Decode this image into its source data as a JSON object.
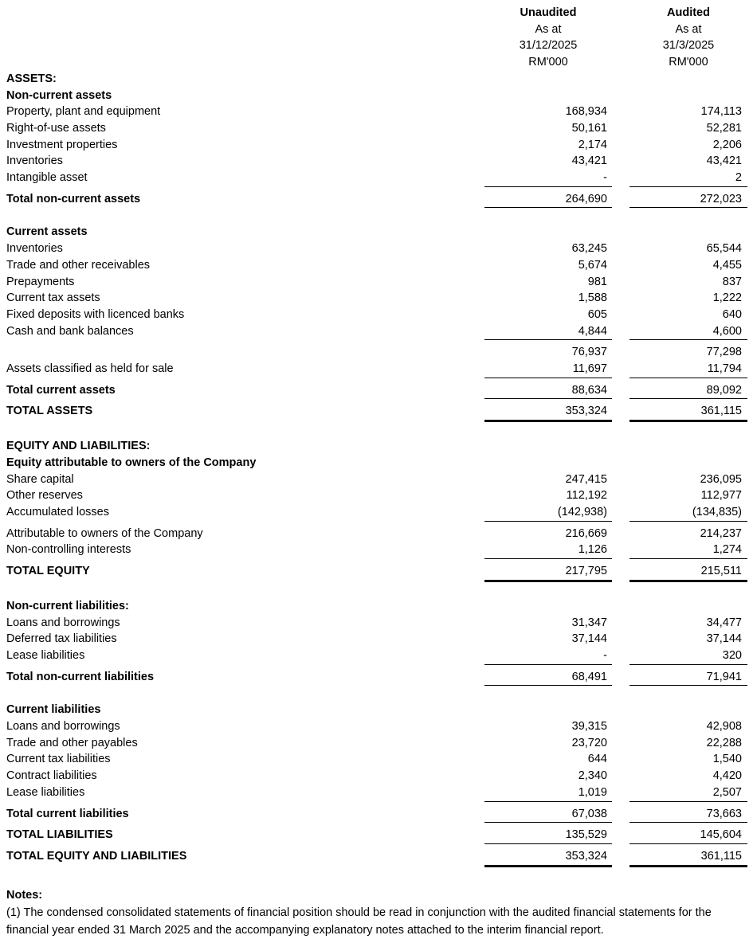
{
  "columns": [
    {
      "status": "Unaudited",
      "as_at": "As at",
      "date": "31/12/2025",
      "unit": "RM'000"
    },
    {
      "status": "Audited",
      "as_at": "As at",
      "date": "31/3/2025",
      "unit": "RM'000"
    }
  ],
  "rows": [
    {
      "type": "section",
      "label": "ASSETS:"
    },
    {
      "type": "section",
      "label": "Non-current assets"
    },
    {
      "type": "item",
      "label": "Property, plant and equipment",
      "v1": "168,934",
      "v2": "174,113"
    },
    {
      "type": "item",
      "label": "Right-of-use assets",
      "v1": "50,161",
      "v2": "52,281"
    },
    {
      "type": "item",
      "label": "Investment properties",
      "v1": "2,174",
      "v2": "2,206"
    },
    {
      "type": "item",
      "label": "Inventories",
      "v1": "43,421",
      "v2": "43,421"
    },
    {
      "type": "item",
      "label": "Intangible asset",
      "v1": "-",
      "v2": "2",
      "u": true
    },
    {
      "type": "total",
      "label": "Total non-current assets",
      "v1": "264,690",
      "v2": "272,023"
    },
    {
      "type": "section",
      "label": "Current assets",
      "gap": true
    },
    {
      "type": "item",
      "label": "Inventories",
      "v1": "63,245",
      "v2": "65,544"
    },
    {
      "type": "item",
      "label": "Trade and other receivables",
      "v1": "5,674",
      "v2": "4,455"
    },
    {
      "type": "item",
      "label": "Prepayments",
      "v1": "981",
      "v2": "837"
    },
    {
      "type": "item",
      "label": "Current tax assets",
      "v1": "1,588",
      "v2": "1,222"
    },
    {
      "type": "item",
      "label": "Fixed deposits with licenced banks",
      "v1": "605",
      "v2": "640"
    },
    {
      "type": "item",
      "label": "Cash and bank balances",
      "v1": "4,844",
      "v2": "4,600",
      "u": true
    },
    {
      "type": "item",
      "label": "",
      "v1": "76,937",
      "v2": "77,298",
      "gap_small": true
    },
    {
      "type": "item",
      "label": "Assets classified as held for sale",
      "v1": "11,697",
      "v2": "11,794",
      "u": true
    },
    {
      "type": "total",
      "label": "Total current assets",
      "v1": "88,634",
      "v2": "89,092"
    },
    {
      "type": "grand",
      "label": "TOTAL ASSETS",
      "v1": "353,324",
      "v2": "361,115"
    },
    {
      "type": "section",
      "label": "EQUITY AND LIABILITIES:",
      "gap": true
    },
    {
      "type": "section",
      "label": "Equity attributable to owners of the Company"
    },
    {
      "type": "item",
      "label": "Share capital",
      "v1": "247,415",
      "v2": "236,095"
    },
    {
      "type": "item",
      "label": "Other reserves",
      "v1": "112,192",
      "v2": "112,977"
    },
    {
      "type": "item",
      "label": "Accumulated losses",
      "v1": "(142,938)",
      "v2": "(134,835)",
      "u": true
    },
    {
      "type": "item",
      "label": "Attributable to owners of the Company",
      "v1": "216,669",
      "v2": "214,237",
      "gap_small": true
    },
    {
      "type": "item",
      "label": "Non-controlling interests",
      "v1": "1,126",
      "v2": "1,274",
      "u": true
    },
    {
      "type": "grand",
      "label": "TOTAL EQUITY",
      "v1": "217,795",
      "v2": "215,511"
    },
    {
      "type": "section",
      "label": "Non-current liabilities:",
      "gap": true
    },
    {
      "type": "item",
      "label": "Loans and borrowings",
      "v1": "31,347",
      "v2": "34,477"
    },
    {
      "type": "item",
      "label": "Deferred tax liabilities",
      "v1": "37,144",
      "v2": "37,144"
    },
    {
      "type": "item",
      "label": "Lease liabilities",
      "v1": "-",
      "v2": "320",
      "u": true
    },
    {
      "type": "total",
      "label": "Total non-current liabilities",
      "v1": "68,491",
      "v2": "71,941"
    },
    {
      "type": "section",
      "label": "Current liabilities",
      "gap": true
    },
    {
      "type": "item",
      "label": "Loans and borrowings",
      "v1": "39,315",
      "v2": "42,908"
    },
    {
      "type": "item",
      "label": "Trade and other payables",
      "v1": "23,720",
      "v2": "22,288"
    },
    {
      "type": "item",
      "label": "Current tax liabilities",
      "v1": "644",
      "v2": "1,540"
    },
    {
      "type": "item",
      "label": "Contract liabilities",
      "v1": "2,340",
      "v2": "4,420"
    },
    {
      "type": "item",
      "label": "Lease liabilities",
      "v1": "1,019",
      "v2": "2,507",
      "u": true
    },
    {
      "type": "total",
      "label": "Total current liabilities",
      "v1": "67,038",
      "v2": "73,663"
    },
    {
      "type": "total",
      "label": "TOTAL LIABILITIES",
      "v1": "135,529",
      "v2": "145,604"
    },
    {
      "type": "grand",
      "label": "TOTAL EQUITY AND LIABILITIES",
      "v1": "353,324",
      "v2": "361,115"
    }
  ],
  "notes": {
    "heading": "Notes:",
    "items": [
      "(1) The condensed consolidated statements of financial position should be read in conjunction with the audited financial statements for the financial year ended 31 March 2025 and the accompanying explanatory notes attached to the interim financial report."
    ]
  }
}
